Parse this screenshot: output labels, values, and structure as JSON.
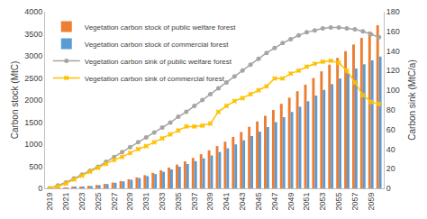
{
  "chart_data": {
    "type": "bar",
    "categories": [
      "2019",
      null,
      "2021",
      null,
      "2023",
      null,
      "2025",
      null,
      "2027",
      null,
      "2029",
      null,
      "2031",
      null,
      "2033",
      null,
      "2035",
      null,
      "2037",
      null,
      "2039",
      null,
      "2041",
      null,
      "2043",
      null,
      "2045",
      null,
      "2047",
      null,
      "2049",
      null,
      "2051",
      null,
      "2053",
      null,
      "2055",
      null,
      "2057",
      null,
      "2059",
      null
    ],
    "y_label": "Carbon stock (MtC)",
    "y2_label": "Carbon sink (MtC/a)",
    "ylim": [
      0,
      4000
    ],
    "yticks": [
      0,
      500,
      1000,
      1500,
      2000,
      2500,
      3000,
      3500,
      4000
    ],
    "y2lim": [
      0,
      180
    ],
    "y2ticks": [
      0,
      20,
      40,
      60,
      80,
      100,
      120,
      140,
      160,
      180
    ],
    "legend": "upper left",
    "grid": false,
    "series": [
      {
        "name": "Vegetation carbon stock of public welfare forest",
        "type": "bar",
        "color": "#ED7D31",
        "values": [
          9,
          12,
          18,
          27,
          40,
          57,
          77,
          102,
          132,
          166,
          206,
          249,
          298,
          351,
          408,
          471,
          538,
          611,
          689,
          773,
          862,
          957,
          1057,
          1163,
          1275,
          1392,
          1515,
          1643,
          1776,
          1914,
          2055,
          2200,
          2348,
          2498,
          2650,
          2802,
          2955,
          3106,
          3257,
          3406,
          3552,
          3695
        ]
      },
      {
        "name": "Vegetation carbon stock of commercial forest",
        "type": "bar",
        "color": "#5B9BD5",
        "values": [
          5,
          7,
          12,
          21,
          34,
          51,
          72,
          97,
          126,
          158,
          194,
          234,
          277,
          324,
          375,
          430,
          489,
          552,
          615,
          679,
          745,
          823,
          907,
          996,
          1088,
          1184,
          1284,
          1388,
          1500,
          1612,
          1729,
          1849,
          1973,
          2100,
          2229,
          2359,
          2487,
          2607,
          2715,
          2810,
          2898,
          2984
        ]
      },
      {
        "name": "Vegetation carbon sink of public welfare forest",
        "type": "line",
        "axis": "y2",
        "color": "#A5A5A5",
        "marker": "circle",
        "line_style": "solid",
        "values": [
          0,
          3,
          6,
          10,
          14,
          18,
          22,
          27,
          32,
          37,
          42,
          47,
          52,
          57,
          62,
          67,
          73,
          78,
          84,
          90,
          96,
          102,
          108,
          114,
          120,
          126,
          132,
          138,
          143,
          148,
          152,
          156,
          159,
          161,
          163,
          164,
          164,
          163,
          162,
          160,
          157,
          154
        ]
      },
      {
        "name": "Vegetation carbon sink of commercial forest",
        "type": "line",
        "axis": "y2",
        "color": "#FFC000",
        "marker": "x",
        "line_style": "solid",
        "values": [
          0,
          2,
          5,
          9,
          13,
          17,
          21,
          25,
          29,
          32,
          36,
          40,
          43,
          47,
          51,
          55,
          59,
          63,
          63,
          64,
          66,
          78,
          84,
          89,
          92,
          96,
          100,
          104,
          112,
          112,
          117,
          120,
          124,
          127,
          129,
          130,
          128,
          120,
          108,
          95,
          88,
          86
        ]
      }
    ]
  }
}
